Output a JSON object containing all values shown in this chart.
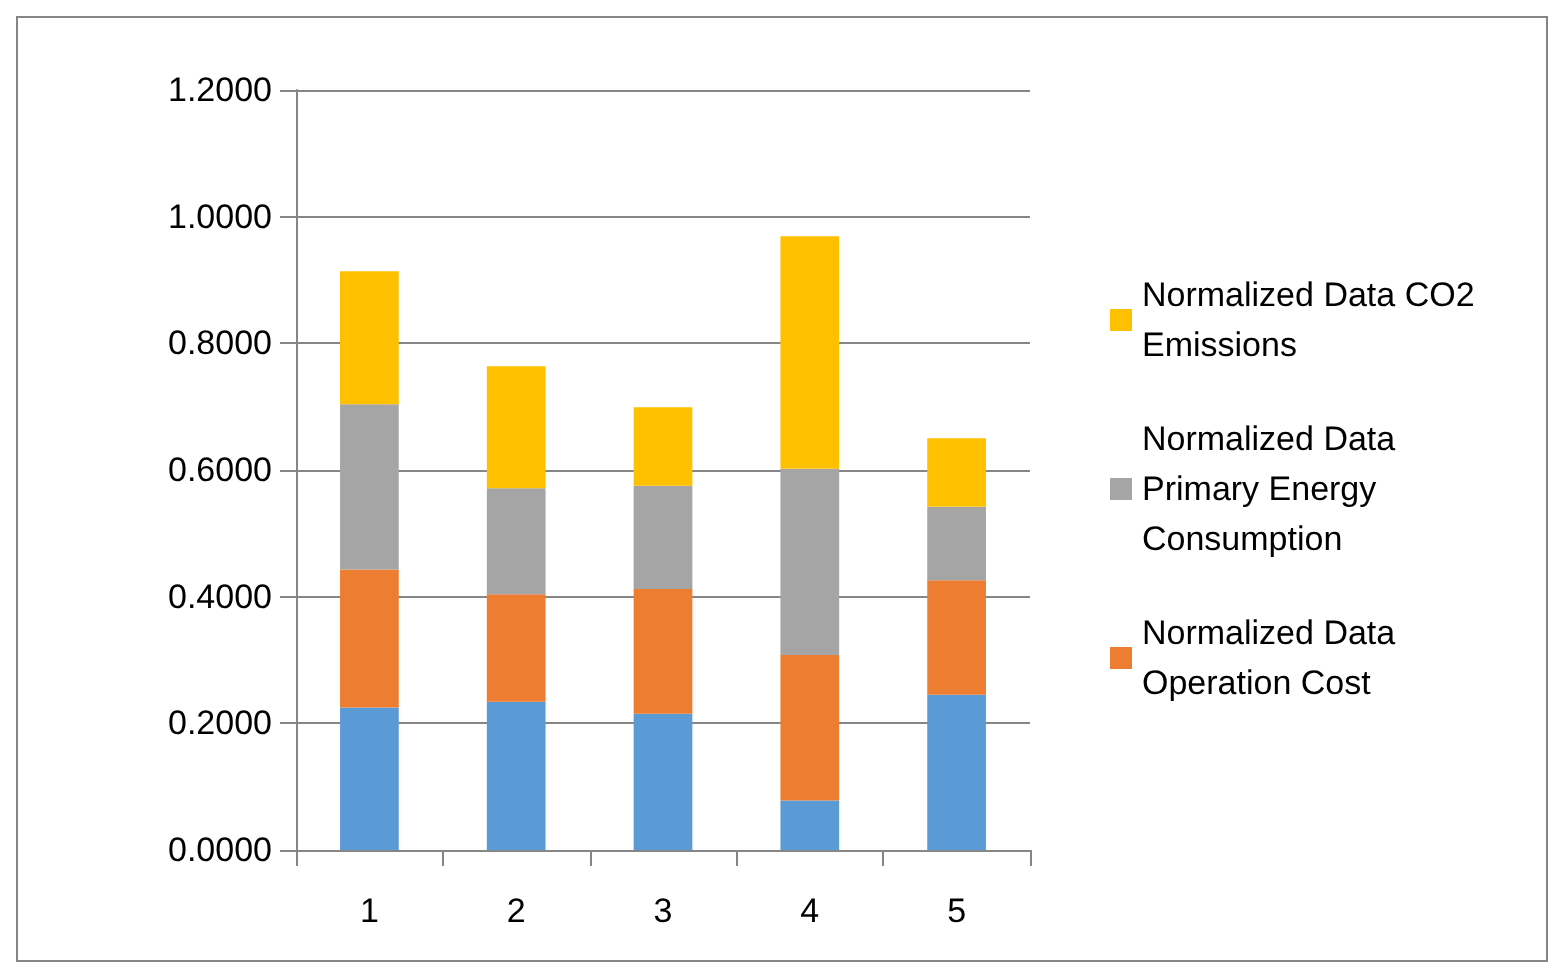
{
  "chart_data": {
    "type": "bar",
    "stacked": true,
    "categories": [
      "1",
      "2",
      "3",
      "4",
      "5"
    ],
    "series": [
      {
        "color": "#5b9bd5",
        "values": [
          0.225,
          0.234,
          0.215,
          0.078,
          0.245
        ]
      },
      {
        "name": "Normalized Data Operation Cost",
        "color": "#ed7d31",
        "values": [
          0.218,
          0.17,
          0.197,
          0.23,
          0.181
        ]
      },
      {
        "name": "Normalized Data Primary Energy Consumption",
        "color": "#a5a5a5",
        "values": [
          0.261,
          0.167,
          0.163,
          0.294,
          0.116
        ]
      },
      {
        "name": "Normalized Data CO2 Emissions",
        "color": "#ffc000",
        "values": [
          0.21,
          0.193,
          0.124,
          0.367,
          0.108
        ]
      }
    ],
    "ylim": [
      0,
      1.2
    ],
    "yticks": [
      {
        "value": 0,
        "label": "0.0000"
      },
      {
        "value": 0.2,
        "label": "0.2000"
      },
      {
        "value": 0.4,
        "label": "0.4000"
      },
      {
        "value": 0.6,
        "label": "0.6000"
      },
      {
        "value": 0.8,
        "label": "0.8000"
      },
      {
        "value": 1,
        "label": "1.0000"
      },
      {
        "value": 1.2,
        "label": "1.2000"
      }
    ],
    "grid": "y",
    "legend": "right"
  }
}
